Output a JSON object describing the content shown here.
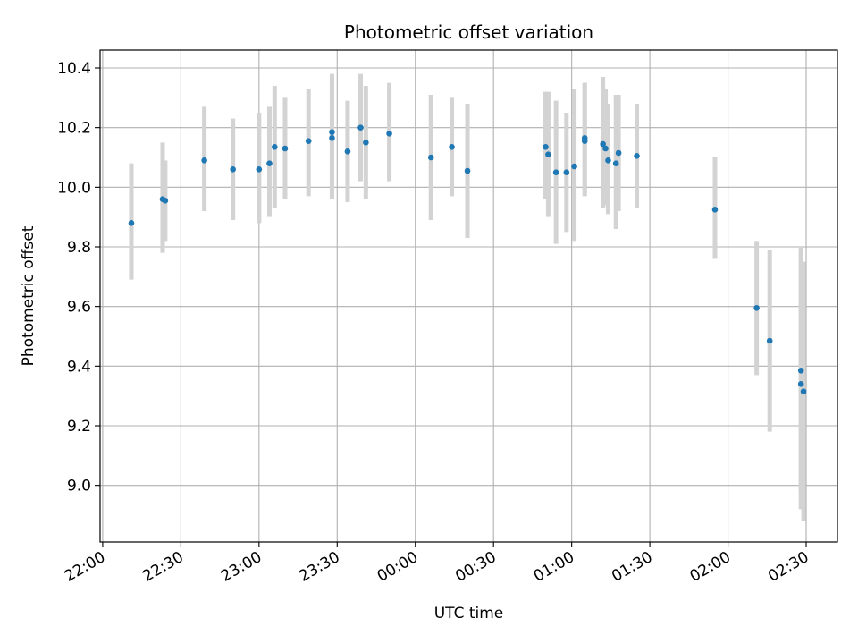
{
  "chart_data": {
    "type": "scatter",
    "title": "Photometric offset variation",
    "xlabel": "UTC time",
    "ylabel": "Photometric offset",
    "x_ticks": [
      "22:00",
      "22:30",
      "23:00",
      "23:30",
      "00:00",
      "00:30",
      "01:00",
      "01:30",
      "02:00",
      "02:30"
    ],
    "y_ticks": [
      "9.0",
      "9.2",
      "9.4",
      "9.6",
      "9.8",
      "10.0",
      "10.2",
      "10.4"
    ],
    "xlim": [
      "21:59",
      "02:42"
    ],
    "ylim": [
      8.81,
      10.46
    ],
    "grid": true,
    "errorbar_color": "#d3d3d3",
    "point_color": "#1f77b4",
    "points": [
      {
        "x": "22:11",
        "y": 9.88,
        "lo": 9.69,
        "hi": 10.08
      },
      {
        "x": "22:23",
        "y": 9.96,
        "lo": 9.78,
        "hi": 10.15
      },
      {
        "x": "22:24",
        "y": 9.955,
        "lo": 9.82,
        "hi": 10.09
      },
      {
        "x": "22:39",
        "y": 10.09,
        "lo": 9.92,
        "hi": 10.27
      },
      {
        "x": "22:50",
        "y": 10.06,
        "lo": 9.89,
        "hi": 10.23
      },
      {
        "x": "23:00",
        "y": 10.06,
        "lo": 9.88,
        "hi": 10.25
      },
      {
        "x": "23:04",
        "y": 10.08,
        "lo": 9.9,
        "hi": 10.27
      },
      {
        "x": "23:06",
        "y": 10.135,
        "lo": 9.93,
        "hi": 10.34
      },
      {
        "x": "23:10",
        "y": 10.13,
        "lo": 9.96,
        "hi": 10.3
      },
      {
        "x": "23:19",
        "y": 10.155,
        "lo": 9.97,
        "hi": 10.33
      },
      {
        "x": "23:28",
        "y": 10.185,
        "lo": 9.96,
        "hi": 10.38
      },
      {
        "x": "23:28",
        "y": 10.165,
        "lo": 9.96,
        "hi": 10.37
      },
      {
        "x": "23:34",
        "y": 10.12,
        "lo": 9.95,
        "hi": 10.29
      },
      {
        "x": "23:39",
        "y": 10.2,
        "lo": 10.02,
        "hi": 10.38
      },
      {
        "x": "23:41",
        "y": 10.15,
        "lo": 9.96,
        "hi": 10.34
      },
      {
        "x": "23:50",
        "y": 10.18,
        "lo": 10.02,
        "hi": 10.35
      },
      {
        "x": "00:06",
        "y": 10.1,
        "lo": 9.89,
        "hi": 10.31
      },
      {
        "x": "00:14",
        "y": 10.135,
        "lo": 9.97,
        "hi": 10.3
      },
      {
        "x": "00:20",
        "y": 10.055,
        "lo": 9.83,
        "hi": 10.28
      },
      {
        "x": "00:50",
        "y": 10.135,
        "lo": 9.96,
        "hi": 10.32
      },
      {
        "x": "00:51",
        "y": 10.11,
        "lo": 9.9,
        "hi": 10.32
      },
      {
        "x": "00:54",
        "y": 10.05,
        "lo": 9.81,
        "hi": 10.29
      },
      {
        "x": "00:58",
        "y": 10.05,
        "lo": 9.85,
        "hi": 10.25
      },
      {
        "x": "01:01",
        "y": 10.07,
        "lo": 9.82,
        "hi": 10.33
      },
      {
        "x": "01:05",
        "y": 10.155,
        "lo": 9.97,
        "hi": 10.35
      },
      {
        "x": "01:05",
        "y": 10.165,
        "lo": 9.98,
        "hi": 10.35
      },
      {
        "x": "01:12",
        "y": 10.145,
        "lo": 9.93,
        "hi": 10.37
      },
      {
        "x": "01:13",
        "y": 10.13,
        "lo": 9.94,
        "hi": 10.33
      },
      {
        "x": "01:14",
        "y": 10.09,
        "lo": 9.91,
        "hi": 10.28
      },
      {
        "x": "01:17",
        "y": 10.08,
        "lo": 9.86,
        "hi": 10.31
      },
      {
        "x": "01:18",
        "y": 10.115,
        "lo": 9.92,
        "hi": 10.31
      },
      {
        "x": "01:25",
        "y": 10.105,
        "lo": 9.93,
        "hi": 10.28
      },
      {
        "x": "01:55",
        "y": 9.925,
        "lo": 9.76,
        "hi": 10.1
      },
      {
        "x": "02:11",
        "y": 9.595,
        "lo": 9.37,
        "hi": 9.82
      },
      {
        "x": "02:16",
        "y": 9.485,
        "lo": 9.18,
        "hi": 9.79
      },
      {
        "x": "02:28",
        "y": 9.385,
        "lo": 8.98,
        "hi": 9.8
      },
      {
        "x": "02:28",
        "y": 9.34,
        "lo": 8.92,
        "hi": 9.78
      },
      {
        "x": "02:29",
        "y": 9.315,
        "lo": 8.88,
        "hi": 9.75
      }
    ]
  }
}
